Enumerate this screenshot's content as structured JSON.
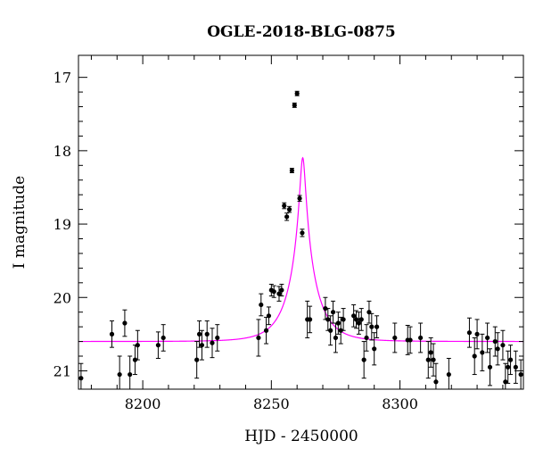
{
  "chart_data": {
    "type": "scatter",
    "title": "OGLE-2018-BLG-0875",
    "xlabel": "HJD - 2450000",
    "ylabel": "I magnitude",
    "xlim": [
      8175,
      8348
    ],
    "ylim": [
      21.25,
      16.7
    ],
    "y_inverted": true,
    "x_ticks": [
      8200,
      8250,
      8300
    ],
    "y_ticks": [
      17,
      18,
      19,
      20,
      21
    ],
    "grid": false,
    "colors": {
      "points": "#000000",
      "model": "#ff00ff"
    },
    "model": {
      "type": "microlensing",
      "t0": 8262.2,
      "u0": 0.1,
      "tE": 10,
      "I_base": 20.6,
      "curve_color": "#ff00ff"
    },
    "series": [
      {
        "x": [
          8176,
          8188,
          8191,
          8193,
          8195,
          8197,
          8198,
          8206,
          8208,
          8221,
          8222,
          8223,
          8225,
          8227,
          8229,
          8245,
          8246,
          8248,
          8249,
          8250,
          8251,
          8253,
          8254,
          8255,
          8256,
          8257,
          8258,
          8259,
          8260,
          8261,
          8262,
          8264,
          8265,
          8271,
          8272,
          8273,
          8274,
          8275,
          8276,
          8277,
          8278,
          8282,
          8283,
          8284,
          8285,
          8286,
          8287,
          8288,
          8289,
          8290,
          8291,
          8298,
          8303,
          8304,
          8308,
          8311,
          8312,
          8313,
          8314,
          8319,
          8327,
          8329,
          8330,
          8332,
          8334,
          8335,
          8337,
          8338,
          8340,
          8341,
          8342,
          8343,
          8345,
          8347
        ],
        "y": [
          21.1,
          20.5,
          21.05,
          20.35,
          21.05,
          20.85,
          20.65,
          20.65,
          20.55,
          20.85,
          20.5,
          20.65,
          20.5,
          20.62,
          20.55,
          20.55,
          20.1,
          20.45,
          20.25,
          19.9,
          19.92,
          19.95,
          19.9,
          18.75,
          18.9,
          18.8,
          18.27,
          17.38,
          17.22,
          18.65,
          19.12,
          20.3,
          20.3,
          20.15,
          20.3,
          20.45,
          20.2,
          20.55,
          20.35,
          20.45,
          20.3,
          20.25,
          20.3,
          20.35,
          20.3,
          20.85,
          20.55,
          20.2,
          20.4,
          20.7,
          20.4,
          20.55,
          20.58,
          20.58,
          20.55,
          20.85,
          20.75,
          20.85,
          21.15,
          21.05,
          20.48,
          20.8,
          20.5,
          20.75,
          20.55,
          20.95,
          20.6,
          20.7,
          20.65,
          21.15,
          20.95,
          20.85,
          20.95,
          21.05
        ],
        "err": [
          0.2,
          0.18,
          0.25,
          0.18,
          0.25,
          0.2,
          0.2,
          0.18,
          0.18,
          0.25,
          0.18,
          0.2,
          0.18,
          0.2,
          0.18,
          0.25,
          0.15,
          0.18,
          0.12,
          0.08,
          0.08,
          0.1,
          0.08,
          0.04,
          0.05,
          0.04,
          0.03,
          0.03,
          0.03,
          0.04,
          0.05,
          0.25,
          0.18,
          0.15,
          0.15,
          0.2,
          0.15,
          0.2,
          0.15,
          0.18,
          0.15,
          0.15,
          0.12,
          0.15,
          0.15,
          0.25,
          0.18,
          0.15,
          0.18,
          0.22,
          0.15,
          0.2,
          0.2,
          0.18,
          0.2,
          0.25,
          0.2,
          0.22,
          0.25,
          0.22,
          0.2,
          0.25,
          0.2,
          0.25,
          0.2,
          0.25,
          0.2,
          0.22,
          0.2,
          0.25,
          0.22,
          0.2,
          0.22,
          0.2
        ]
      }
    ]
  }
}
